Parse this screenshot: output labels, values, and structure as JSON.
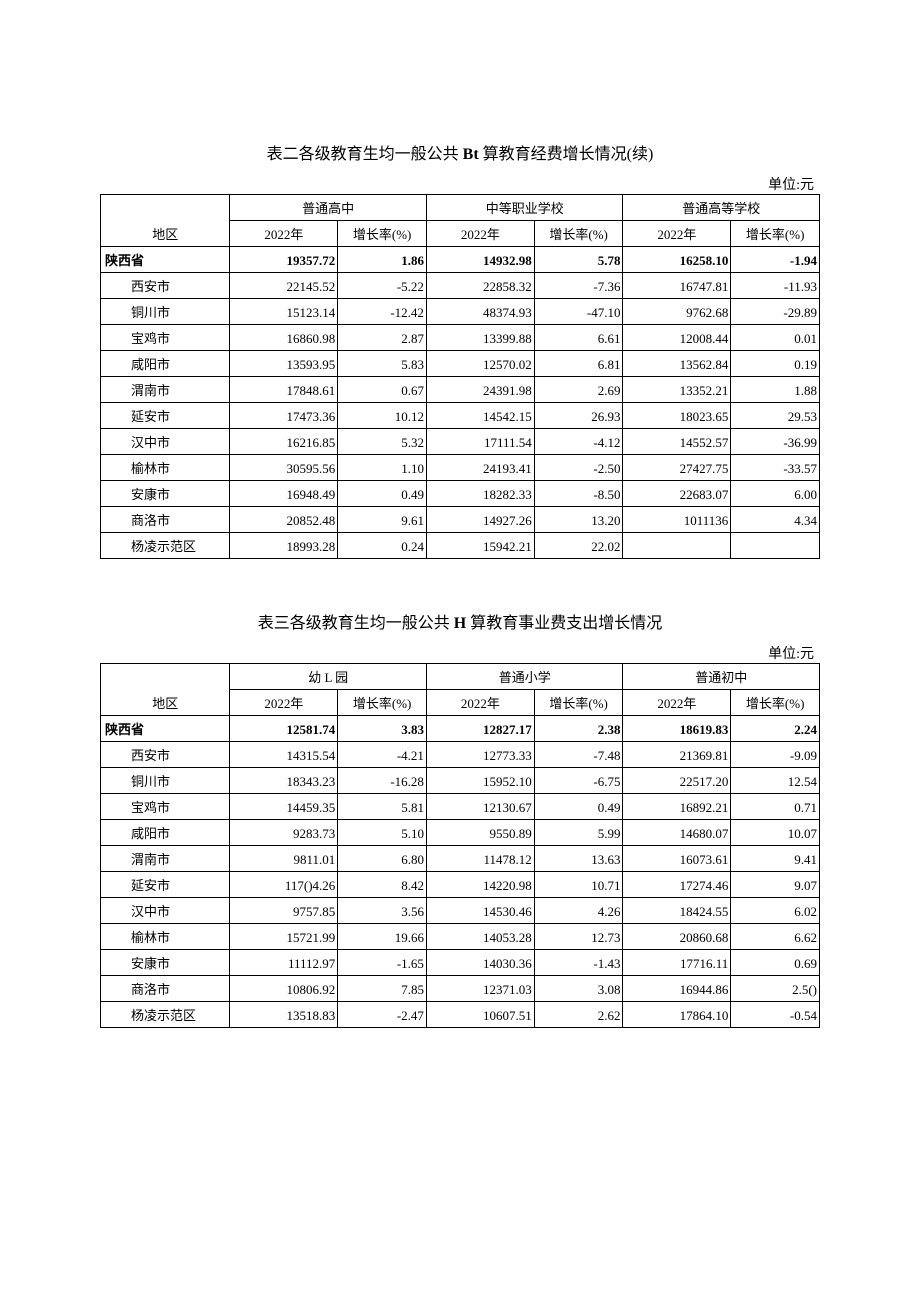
{
  "table2": {
    "title_prefix": "表二各级教育生均一般公共 ",
    "title_bold": "Bt",
    "title_suffix": " 算教育经费增长情况(续)",
    "unit": "单位:元",
    "region_header": "地区",
    "groups": [
      {
        "name": "普通高中",
        "col_year": "2022年",
        "col_rate": "增长率(%)"
      },
      {
        "name": "中等职业学校",
        "col_year": "2022年",
        "col_rate": "增长率(%)"
      },
      {
        "name": "普通高等学校",
        "col_year": "2022年",
        "col_rate": "增长率(%)"
      }
    ],
    "rows": [
      {
        "region": "陕西省",
        "bold": true,
        "province": true,
        "cells": [
          "19357.72",
          "1.86",
          "14932.98",
          "5.78",
          "16258.10",
          "-1.94"
        ]
      },
      {
        "region": "西安市",
        "cells": [
          "22145.52",
          "-5.22",
          "22858.32",
          "-7.36",
          "16747.81",
          "-11.93"
        ]
      },
      {
        "region": "铜川市",
        "cells": [
          "15123.14",
          "-12.42",
          "48374.93",
          "-47.10",
          "9762.68",
          "-29.89"
        ]
      },
      {
        "region": "宝鸡市",
        "cells": [
          "16860.98",
          "2.87",
          "13399.88",
          "6.61",
          "12008.44",
          "0.01"
        ]
      },
      {
        "region": "咸阳市",
        "cells": [
          "13593.95",
          "5.83",
          "12570.02",
          "6.81",
          "13562.84",
          "0.19"
        ]
      },
      {
        "region": "渭南市",
        "cells": [
          "17848.61",
          "0.67",
          "24391.98",
          "2.69",
          "13352.21",
          "1.88"
        ]
      },
      {
        "region": "延安市",
        "cells": [
          "17473.36",
          "10.12",
          "14542.15",
          "26.93",
          "18023.65",
          "29.53"
        ]
      },
      {
        "region": "汉中市",
        "cells": [
          "16216.85",
          "5.32",
          "17111.54",
          "-4.12",
          "14552.57",
          "-36.99"
        ]
      },
      {
        "region": "榆林市",
        "cells": [
          "30595.56",
          "1.10",
          "24193.41",
          "-2.50",
          "27427.75",
          "-33.57"
        ]
      },
      {
        "region": "安康市",
        "cells": [
          "16948.49",
          "0.49",
          "18282.33",
          "-8.50",
          "22683.07",
          "6.00"
        ]
      },
      {
        "region": "商洛市",
        "cells": [
          "20852.48",
          "9.61",
          "14927.26",
          "13.20",
          "1011136",
          "4.34"
        ]
      },
      {
        "region": "杨凌示范区",
        "cells": [
          "18993.28",
          "0.24",
          "15942.21",
          "22.02",
          "",
          ""
        ]
      }
    ]
  },
  "table3": {
    "title_prefix": "表三各级教育生均一般公共 ",
    "title_bold": "H",
    "title_suffix": " 算教育事业费支出增长情况",
    "unit": "单位:元",
    "region_header": "地区",
    "groups": [
      {
        "name": "幼 L 园",
        "col_year": "2022年",
        "col_rate": "增长率(%)"
      },
      {
        "name": "普通小学",
        "col_year": "2022年",
        "col_rate": "增长率(%)"
      },
      {
        "name": "普通初中",
        "col_year": "2022年",
        "col_rate": "增长率(%)"
      }
    ],
    "rows": [
      {
        "region": "陕西省",
        "bold": true,
        "province": true,
        "cells": [
          "12581.74",
          "3.83",
          "12827.17",
          "2.38",
          "18619.83",
          "2.24"
        ]
      },
      {
        "region": "西安市",
        "cells": [
          "14315.54",
          "-4.21",
          "12773.33",
          "-7.48",
          "21369.81",
          "-9.09"
        ]
      },
      {
        "region": "铜川市",
        "cells": [
          "18343.23",
          "-16.28",
          "15952.10",
          "-6.75",
          "22517.20",
          "12.54"
        ]
      },
      {
        "region": "宝鸡市",
        "cells": [
          "14459.35",
          "5.81",
          "12130.67",
          "0.49",
          "16892.21",
          "0.71"
        ]
      },
      {
        "region": "咸阳市",
        "cells": [
          "9283.73",
          "5.10",
          "9550.89",
          "5.99",
          "14680.07",
          "10.07"
        ]
      },
      {
        "region": "渭南市",
        "cells": [
          "9811.01",
          "6.80",
          "11478.12",
          "13.63",
          "16073.61",
          "9.41"
        ]
      },
      {
        "region": "延安市",
        "cells": [
          "117()4.26",
          "8.42",
          "14220.98",
          "10.71",
          "17274.46",
          "9.07"
        ]
      },
      {
        "region": "汉中市",
        "cells": [
          "9757.85",
          "3.56",
          "14530.46",
          "4.26",
          "18424.55",
          "6.02"
        ]
      },
      {
        "region": "榆林市",
        "cells": [
          "15721.99",
          "19.66",
          "14053.28",
          "12.73",
          "20860.68",
          "6.62"
        ]
      },
      {
        "region": "安康市",
        "cells": [
          "11112.97",
          "-1.65",
          "14030.36",
          "-1.43",
          "17716.11",
          "0.69"
        ]
      },
      {
        "region": "商洛市",
        "cells": [
          "10806.92",
          "7.85",
          "12371.03",
          "3.08",
          "16944.86",
          "2.5()"
        ]
      },
      {
        "region": "杨凌示范区",
        "cells": [
          "13518.83",
          "-2.47",
          "10607.51",
          "2.62",
          "17864.10",
          "-0.54"
        ]
      }
    ]
  }
}
